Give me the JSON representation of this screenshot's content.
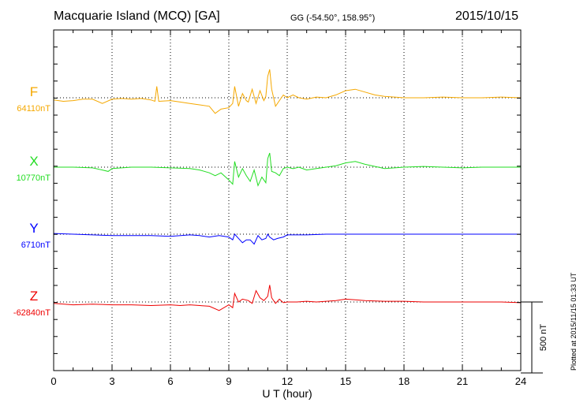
{
  "header": {
    "station": "Macquarie Island (MCQ)  [GA]",
    "coords": "GG (-54.50°, 158.95°)",
    "date": "2015/10/15"
  },
  "plotted_note": "Plotted at 2015/11/15 01:33 UT",
  "chart_data": {
    "type": "line",
    "title": "Macquarie Island (MCQ)  [GA]",
    "xlabel": "U T (hour)",
    "xlim": [
      0,
      24
    ],
    "xticks": [
      0,
      3,
      6,
      9,
      12,
      15,
      18,
      21,
      24
    ],
    "grid": "vertical dotted at 3 h intervals; dotted baseline per component",
    "scale_bar": "500 nT",
    "scale_bar_nT": 500,
    "series": [
      {
        "name": "F",
        "baseline": "64110nT",
        "color": "#f5a800",
        "points": [
          [
            0,
            -15
          ],
          [
            0.5,
            -25
          ],
          [
            1,
            -20
          ],
          [
            1.5,
            -10
          ],
          [
            2,
            -10
          ],
          [
            2.5,
            -40
          ],
          [
            3,
            -10
          ],
          [
            3.5,
            -5
          ],
          [
            4,
            -10
          ],
          [
            4.5,
            -5
          ],
          [
            5,
            -15
          ],
          [
            5.2,
            -25
          ],
          [
            5.3,
            80
          ],
          [
            5.4,
            -25
          ],
          [
            6,
            -20
          ],
          [
            6.5,
            -30
          ],
          [
            7,
            -40
          ],
          [
            7.5,
            -50
          ],
          [
            8,
            -60
          ],
          [
            8.3,
            -110
          ],
          [
            8.6,
            -80
          ],
          [
            9,
            -70
          ],
          [
            9.2,
            -40
          ],
          [
            9.3,
            80
          ],
          [
            9.5,
            -60
          ],
          [
            9.7,
            30
          ],
          [
            9.9,
            -20
          ],
          [
            10,
            -30
          ],
          [
            10.2,
            60
          ],
          [
            10.4,
            -40
          ],
          [
            10.6,
            50
          ],
          [
            10.8,
            -20
          ],
          [
            10.9,
            10
          ],
          [
            11,
            150
          ],
          [
            11.1,
            200
          ],
          [
            11.2,
            60
          ],
          [
            11.4,
            -60
          ],
          [
            11.6,
            -20
          ],
          [
            11.8,
            20
          ],
          [
            12,
            0
          ],
          [
            12.3,
            20
          ],
          [
            12.6,
            0
          ],
          [
            13,
            -10
          ],
          [
            13.5,
            5
          ],
          [
            14,
            0
          ],
          [
            14.5,
            20
          ],
          [
            15,
            50
          ],
          [
            15.5,
            60
          ],
          [
            16,
            40
          ],
          [
            16.5,
            20
          ],
          [
            17,
            10
          ],
          [
            18,
            0
          ],
          [
            19,
            0
          ],
          [
            20,
            5
          ],
          [
            21,
            0
          ],
          [
            22,
            0
          ],
          [
            23,
            5
          ],
          [
            24,
            0
          ]
        ]
      },
      {
        "name": "X",
        "baseline": "10770nT",
        "color": "#22dd22",
        "points": [
          [
            0,
            0
          ],
          [
            1,
            0
          ],
          [
            2,
            -5
          ],
          [
            2.5,
            -20
          ],
          [
            2.8,
            -30
          ],
          [
            3,
            -10
          ],
          [
            3.5,
            -5
          ],
          [
            4,
            0
          ],
          [
            5,
            0
          ],
          [
            6,
            -5
          ],
          [
            7,
            -10
          ],
          [
            7.5,
            -20
          ],
          [
            8,
            -40
          ],
          [
            8.3,
            -60
          ],
          [
            8.6,
            -40
          ],
          [
            9,
            -90
          ],
          [
            9.2,
            -120
          ],
          [
            9.3,
            40
          ],
          [
            9.5,
            -70
          ],
          [
            9.7,
            -10
          ],
          [
            9.9,
            -60
          ],
          [
            10.1,
            -100
          ],
          [
            10.3,
            -20
          ],
          [
            10.5,
            -130
          ],
          [
            10.7,
            -70
          ],
          [
            10.9,
            -110
          ],
          [
            11,
            60
          ],
          [
            11.1,
            100
          ],
          [
            11.2,
            -30
          ],
          [
            11.4,
            -40
          ],
          [
            11.6,
            -60
          ],
          [
            11.8,
            -10
          ],
          [
            12,
            0
          ],
          [
            12.3,
            -10
          ],
          [
            12.6,
            0
          ],
          [
            13,
            -20
          ],
          [
            13.5,
            -10
          ],
          [
            14,
            0
          ],
          [
            14.5,
            10
          ],
          [
            15,
            30
          ],
          [
            15.5,
            40
          ],
          [
            16,
            20
          ],
          [
            17,
            -10
          ],
          [
            18,
            0
          ],
          [
            19,
            5
          ],
          [
            20,
            0
          ],
          [
            21,
            -5
          ],
          [
            22,
            0
          ],
          [
            23,
            0
          ],
          [
            24,
            0
          ]
        ]
      },
      {
        "name": "Y",
        "baseline": "6710nT",
        "color": "#0000ff",
        "points": [
          [
            0,
            5
          ],
          [
            1,
            0
          ],
          [
            2,
            -5
          ],
          [
            3,
            -10
          ],
          [
            4,
            -10
          ],
          [
            5,
            -10
          ],
          [
            6,
            -15
          ],
          [
            7,
            -5
          ],
          [
            7.5,
            -10
          ],
          [
            8,
            -20
          ],
          [
            8.5,
            -10
          ],
          [
            9,
            -20
          ],
          [
            9.2,
            -40
          ],
          [
            9.3,
            0
          ],
          [
            9.5,
            -30
          ],
          [
            9.7,
            -60
          ],
          [
            9.9,
            -40
          ],
          [
            10.1,
            -40
          ],
          [
            10.3,
            -70
          ],
          [
            10.5,
            -10
          ],
          [
            10.7,
            -40
          ],
          [
            10.9,
            -30
          ],
          [
            11,
            0
          ],
          [
            11.1,
            -20
          ],
          [
            11.3,
            -40
          ],
          [
            11.5,
            -30
          ],
          [
            11.8,
            -20
          ],
          [
            12,
            -5
          ],
          [
            12.5,
            -5
          ],
          [
            13,
            -5
          ],
          [
            14,
            0
          ],
          [
            15,
            0
          ],
          [
            16,
            0
          ],
          [
            17,
            0
          ],
          [
            18,
            0
          ],
          [
            19,
            0
          ],
          [
            20,
            0
          ],
          [
            21,
            0
          ],
          [
            22,
            0
          ],
          [
            23,
            0
          ],
          [
            24,
            0
          ]
        ]
      },
      {
        "name": "Z",
        "baseline": "-62840nT",
        "color": "#ee0000",
        "points": [
          [
            0,
            -10
          ],
          [
            1,
            -20
          ],
          [
            2,
            -15
          ],
          [
            3,
            -20
          ],
          [
            4,
            -20
          ],
          [
            5,
            -25
          ],
          [
            6,
            -20
          ],
          [
            6.5,
            -25
          ],
          [
            7,
            -20
          ],
          [
            7.5,
            -25
          ],
          [
            8,
            -30
          ],
          [
            8.5,
            -60
          ],
          [
            9,
            -20
          ],
          [
            9.2,
            -40
          ],
          [
            9.3,
            60
          ],
          [
            9.5,
            0
          ],
          [
            9.7,
            20
          ],
          [
            10,
            10
          ],
          [
            10.2,
            -10
          ],
          [
            10.4,
            80
          ],
          [
            10.6,
            30
          ],
          [
            10.8,
            10
          ],
          [
            11,
            40
          ],
          [
            11.1,
            120
          ],
          [
            11.2,
            30
          ],
          [
            11.4,
            -10
          ],
          [
            11.6,
            20
          ],
          [
            11.8,
            -5
          ],
          [
            12,
            0
          ],
          [
            12.5,
            0
          ],
          [
            13,
            5
          ],
          [
            13.5,
            0
          ],
          [
            14,
            5
          ],
          [
            14.5,
            10
          ],
          [
            15,
            20
          ],
          [
            15.5,
            15
          ],
          [
            16,
            10
          ],
          [
            17,
            5
          ],
          [
            18,
            5
          ],
          [
            19,
            0
          ],
          [
            20,
            0
          ],
          [
            21,
            0
          ],
          [
            22,
            0
          ],
          [
            23,
            0
          ],
          [
            24,
            -5
          ]
        ]
      }
    ]
  }
}
